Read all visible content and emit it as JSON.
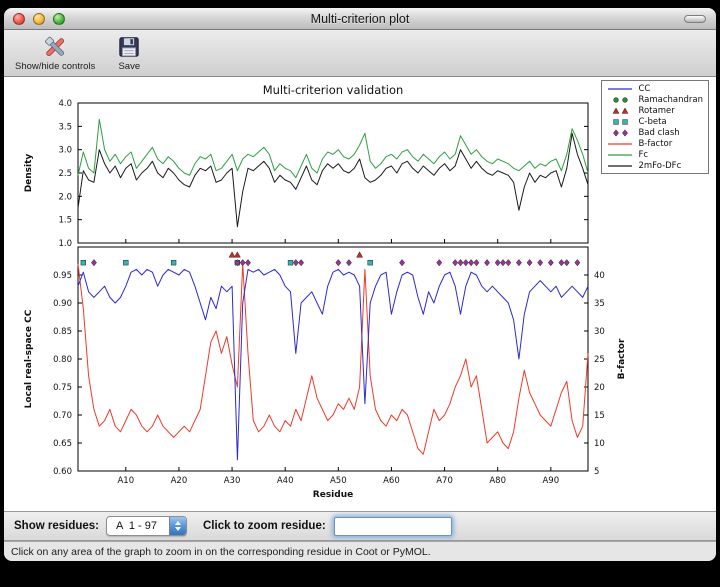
{
  "window": {
    "title": "Multi-criterion plot"
  },
  "toolbar": {
    "items": [
      {
        "label": "Show/hide controls"
      },
      {
        "label": "Save"
      }
    ]
  },
  "controls": {
    "show_residues_label": "Show residues:",
    "residue_range_value": "A  1 - 97",
    "zoom_label": "Click to zoom residue:",
    "zoom_input_value": ""
  },
  "status_bar": {
    "text": "Click on any area of the graph to zoom in on the corresponding residue in Coot or PyMOL."
  },
  "chart_data": {
    "type": "line",
    "title": "Multi-criterion validation",
    "x_range": [
      1,
      97
    ],
    "top_plot": {
      "ylabel": "Density",
      "ylim": [
        1.0,
        4.0
      ],
      "yticks": [
        1.0,
        1.5,
        2.0,
        2.5,
        3.0,
        3.5,
        4.0
      ],
      "series": [
        {
          "name": "Fc",
          "color": "#2f9e41",
          "values": [
            2.45,
            2.95,
            2.6,
            2.5,
            3.65,
            3.0,
            2.75,
            2.9,
            2.7,
            2.85,
            2.95,
            2.6,
            2.75,
            2.9,
            3.05,
            2.8,
            2.7,
            2.85,
            2.75,
            2.6,
            2.5,
            2.45,
            2.7,
            2.85,
            2.8,
            2.9,
            2.55,
            2.6,
            2.75,
            2.9,
            2.55,
            2.8,
            2.9,
            2.85,
            2.95,
            3.05,
            2.9,
            2.55,
            2.7,
            2.6,
            2.55,
            2.4,
            2.65,
            2.9,
            2.6,
            2.5,
            2.8,
            2.95,
            2.9,
            3.0,
            2.85,
            2.8,
            2.9,
            3.1,
            3.35,
            2.75,
            2.6,
            2.7,
            2.85,
            2.9,
            2.8,
            2.95,
            3.0,
            2.85,
            2.75,
            2.9,
            2.8,
            2.7,
            2.85,
            2.95,
            2.8,
            2.9,
            3.3,
            3.1,
            2.9,
            3.0,
            2.85,
            2.75,
            2.7,
            2.8,
            2.75,
            2.7,
            2.6,
            2.55,
            2.65,
            2.75,
            2.6,
            2.7,
            2.65,
            2.75,
            2.8,
            2.55,
            2.9,
            3.45,
            3.2,
            2.9,
            2.5
          ]
        },
        {
          "name": "2mFo-DFc",
          "color": "#1a1a1a",
          "values": [
            1.75,
            2.55,
            2.35,
            2.3,
            3.0,
            2.7,
            2.5,
            2.65,
            2.4,
            2.6,
            2.7,
            2.35,
            2.5,
            2.6,
            2.75,
            2.5,
            2.4,
            2.6,
            2.5,
            2.35,
            2.25,
            2.2,
            2.45,
            2.6,
            2.55,
            2.65,
            2.3,
            2.35,
            2.5,
            2.6,
            1.35,
            2.1,
            2.6,
            2.55,
            2.65,
            2.75,
            2.6,
            2.3,
            2.45,
            2.35,
            2.3,
            2.15,
            2.4,
            2.65,
            2.35,
            2.25,
            2.55,
            2.7,
            2.6,
            2.7,
            2.55,
            2.5,
            2.6,
            2.8,
            2.4,
            2.3,
            2.35,
            2.45,
            2.6,
            2.65,
            2.5,
            2.7,
            2.75,
            2.6,
            2.5,
            2.65,
            2.55,
            2.45,
            2.6,
            2.7,
            2.55,
            2.65,
            3.0,
            2.8,
            2.6,
            2.75,
            2.6,
            2.5,
            2.45,
            2.55,
            2.5,
            2.45,
            2.3,
            1.7,
            2.2,
            2.5,
            2.3,
            2.45,
            2.4,
            2.5,
            2.55,
            2.2,
            2.6,
            3.35,
            2.9,
            2.6,
            2.25
          ]
        }
      ]
    },
    "bottom_plot": {
      "ylabel_left": "Local real-space CC",
      "ylabel_right": "B-factor",
      "xlabel": "Residue",
      "ylim_left": [
        0.6,
        1.0
      ],
      "yticks_left": [
        0.6,
        0.65,
        0.7,
        0.75,
        0.8,
        0.85,
        0.9,
        0.95
      ],
      "ylim_right": [
        5,
        45
      ],
      "yticks_right": [
        5,
        10,
        15,
        20,
        25,
        30,
        35,
        40
      ],
      "xticks": [
        10,
        20,
        30,
        40,
        50,
        60,
        70,
        80,
        90
      ],
      "xtick_labels": [
        "A10",
        "A20",
        "A30",
        "A40",
        "A50",
        "A60",
        "A70",
        "A80",
        "A90"
      ],
      "series": [
        {
          "name": "CC",
          "axis": "left",
          "color": "#2a2ad0",
          "values": [
            0.93,
            0.955,
            0.92,
            0.91,
            0.92,
            0.93,
            0.91,
            0.9,
            0.91,
            0.93,
            0.955,
            0.96,
            0.95,
            0.96,
            0.955,
            0.93,
            0.95,
            0.96,
            0.955,
            0.95,
            0.96,
            0.955,
            0.93,
            0.9,
            0.87,
            0.91,
            0.89,
            0.93,
            0.92,
            0.93,
            0.62,
            0.9,
            0.96,
            0.955,
            0.96,
            0.95,
            0.955,
            0.96,
            0.95,
            0.93,
            0.92,
            0.81,
            0.9,
            0.91,
            0.92,
            0.9,
            0.88,
            0.93,
            0.955,
            0.96,
            0.95,
            0.955,
            0.95,
            0.93,
            0.72,
            0.9,
            0.93,
            0.95,
            0.955,
            0.88,
            0.92,
            0.95,
            0.955,
            0.95,
            0.91,
            0.88,
            0.92,
            0.9,
            0.93,
            0.95,
            0.955,
            0.93,
            0.88,
            0.93,
            0.955,
            0.95,
            0.93,
            0.92,
            0.93,
            0.92,
            0.91,
            0.9,
            0.87,
            0.8,
            0.88,
            0.92,
            0.93,
            0.94,
            0.93,
            0.92,
            0.93,
            0.91,
            0.92,
            0.93,
            0.92,
            0.91,
            0.93
          ]
        },
        {
          "name": "B-factor",
          "axis": "right",
          "color": "#ee3a28",
          "values": [
            42,
            34,
            22,
            16,
            13,
            14,
            16,
            13,
            12,
            14,
            16,
            15,
            13,
            12,
            13,
            15,
            13,
            12,
            11,
            12,
            13,
            12,
            14,
            16,
            22,
            28,
            30,
            26,
            29,
            24,
            20,
            42,
            26,
            14,
            12,
            13,
            15,
            13,
            12,
            14,
            13,
            16,
            14,
            18,
            22,
            18,
            16,
            14,
            15,
            17,
            16,
            18,
            16,
            20,
            41,
            22,
            16,
            14,
            13,
            15,
            14,
            16,
            15,
            12,
            9,
            8,
            12,
            16,
            14,
            15,
            17,
            20,
            22,
            25,
            20,
            22,
            16,
            10,
            11,
            12,
            10,
            9,
            12,
            18,
            23,
            19,
            17,
            15,
            14,
            13,
            16,
            19,
            21,
            14,
            11,
            13,
            26
          ]
        }
      ],
      "markers": [
        {
          "name": "Ramachandran",
          "shape": "circle",
          "color": "#22902f",
          "residues": []
        },
        {
          "name": "Rotamer",
          "shape": "triangle",
          "color": "#cc2a1e",
          "residues": [
            30,
            31,
            54
          ]
        },
        {
          "name": "C-beta",
          "shape": "square",
          "color": "#33b5b5",
          "residues": [
            2,
            10,
            19,
            31,
            41,
            56
          ]
        },
        {
          "name": "Bad clash",
          "shape": "diamond",
          "color": "#993399",
          "residues": [
            4,
            31,
            32,
            33,
            42,
            43,
            50,
            52,
            62,
            69,
            72,
            73,
            74,
            75,
            76,
            78,
            80,
            81,
            82,
            84,
            86,
            88,
            90,
            92,
            93,
            95
          ]
        }
      ]
    },
    "legend": {
      "position": "upper right",
      "entries": [
        {
          "label": "CC",
          "glyph": "line",
          "color": "#2a2ad0"
        },
        {
          "label": "Ramachandran",
          "glyph": "circle",
          "color": "#22902f"
        },
        {
          "label": "Rotamer",
          "glyph": "triangle",
          "color": "#cc2a1e"
        },
        {
          "label": "C-beta",
          "glyph": "square",
          "color": "#33b5b5"
        },
        {
          "label": "Bad clash",
          "glyph": "diamond",
          "color": "#993399"
        },
        {
          "label": "B-factor",
          "glyph": "line",
          "color": "#ee3a28"
        },
        {
          "label": "Fc",
          "glyph": "line",
          "color": "#2f9e41"
        },
        {
          "label": "2mFo-DFc",
          "glyph": "line",
          "color": "#1a1a1a"
        }
      ]
    }
  }
}
